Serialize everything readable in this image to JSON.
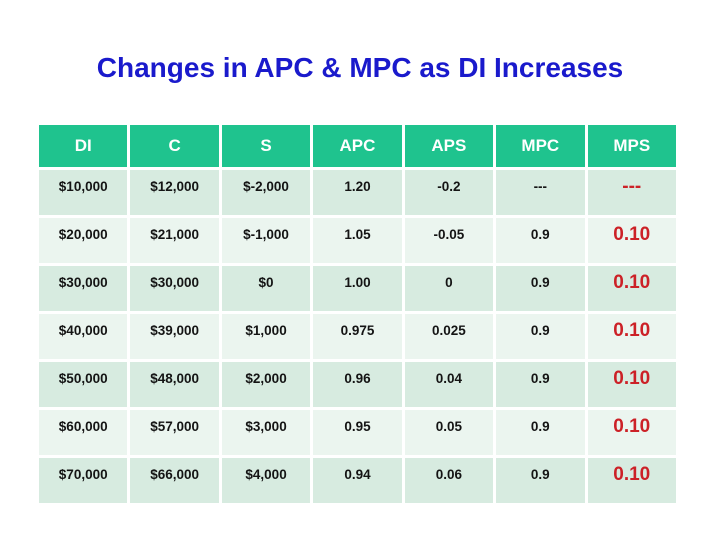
{
  "slide": {
    "title": "Changes in APC & MPC as DI Increases"
  },
  "colors": {
    "title_blue": "#1a1acc",
    "header_green": "#1fc38e",
    "row_band_dark": "#d7ebe0",
    "row_band_light": "#ebf5ef",
    "value_black": "#141414",
    "mps_red": "#cc2127",
    "background": "#ffffff",
    "gridline_white": "#ffffff"
  },
  "chart_data": {
    "type": "table",
    "title": "Changes in APC & MPC as DI Increases",
    "columns": [
      "DI",
      "C",
      "S",
      "APC",
      "APS",
      "MPC",
      "MPS"
    ],
    "rows": [
      [
        "$10,000",
        "$12,000",
        "$-2,000",
        "1.20",
        "-0.2",
        "---",
        "---"
      ],
      [
        "$20,000",
        "$21,000",
        "$-1,000",
        "1.05",
        "-0.05",
        "0.9",
        "0.10"
      ],
      [
        "$30,000",
        "$30,000",
        "$0",
        "1.00",
        "0",
        "0.9",
        "0.10"
      ],
      [
        "$40,000",
        "$39,000",
        "$1,000",
        "0.975",
        "0.025",
        "0.9",
        "0.10"
      ],
      [
        "$50,000",
        "$48,000",
        "$2,000",
        "0.96",
        "0.04",
        "0.9",
        "0.10"
      ],
      [
        "$60,000",
        "$57,000",
        "$3,000",
        "0.95",
        "0.05",
        "0.9",
        "0.10"
      ],
      [
        "$70,000",
        "$66,000",
        "$4,000",
        "0.94",
        "0.06",
        "0.9",
        "0.10"
      ]
    ],
    "layout_hints": {
      "banded_rows": true,
      "last_column_highlight_color": "#cc2127",
      "header_text_color": "#ffffff"
    }
  }
}
